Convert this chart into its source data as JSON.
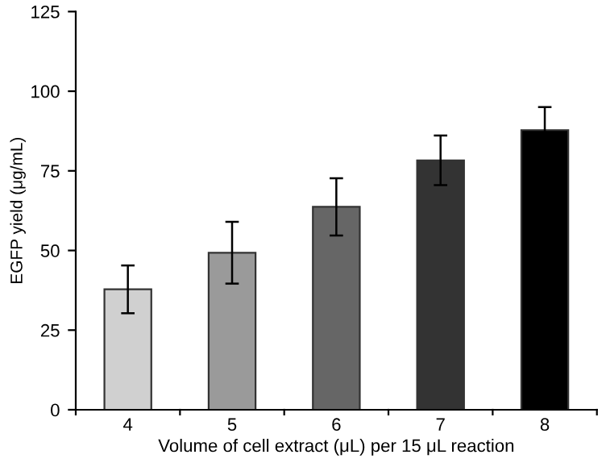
{
  "chart_data": {
    "type": "bar",
    "xlabel": "Volume of cell extract (μL) per 15 μL reaction",
    "ylabel": "EGFP yield (μg/mL)",
    "categories": [
      "4",
      "5",
      "6",
      "7",
      "8"
    ],
    "values": [
      37.8,
      49.3,
      63.7,
      78.3,
      87.8
    ],
    "errors": [
      7.5,
      9.7,
      9,
      7.8,
      7.2
    ],
    "colors": [
      "#d0d0d0",
      "#9a9a9a",
      "#666666",
      "#333333",
      "#000000"
    ],
    "ylim": [
      0,
      125
    ],
    "yticks": [
      0,
      25,
      50,
      75,
      100,
      125
    ],
    "grid": false,
    "legend": false
  }
}
